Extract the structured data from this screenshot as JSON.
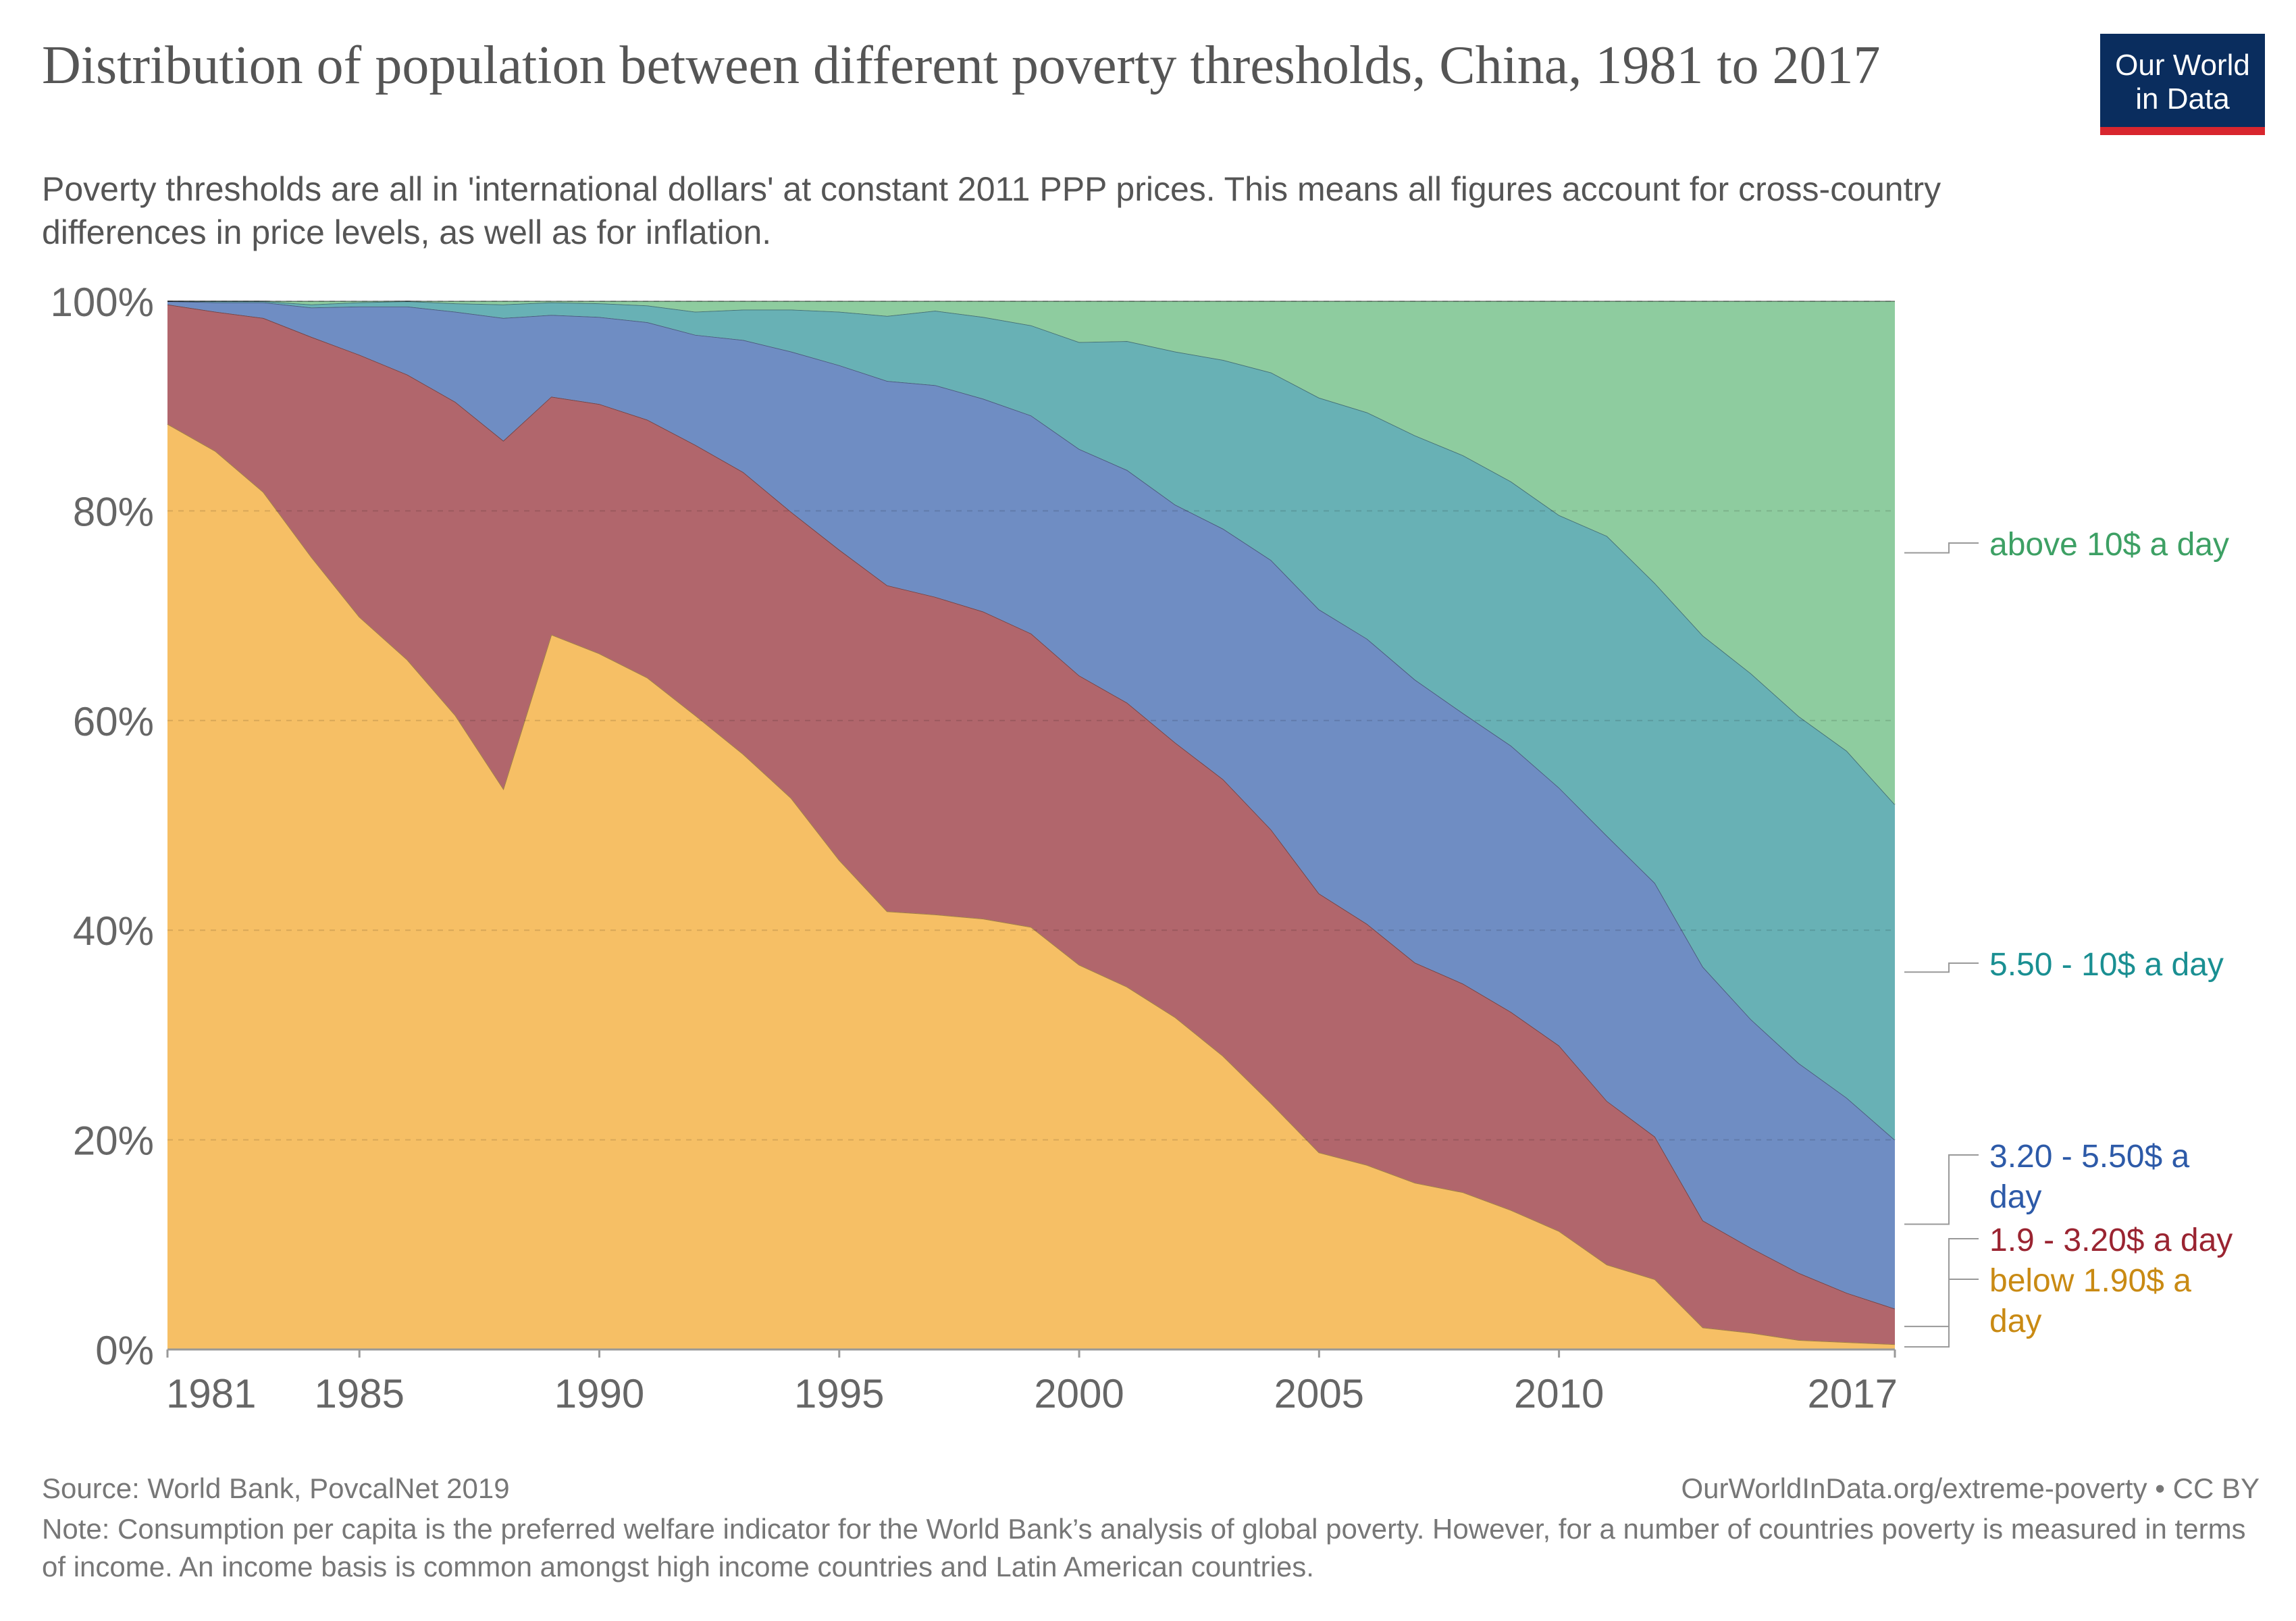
{
  "header": {
    "title": "Distribution of population between different poverty thresholds, China, 1981 to 2017",
    "subtitle": "Poverty thresholds are all in 'international dollars' at constant 2011 PPP prices. This means all figures account for cross-country differences in price levels, as well as for inflation.",
    "logo_line1": "Our World",
    "logo_line2": "in Data"
  },
  "footer": {
    "source": "Source: World Bank, PovcalNet 2019",
    "url": "OurWorldInData.org/extreme-poverty • CC BY",
    "note": "Note: Consumption per capita is the preferred welfare indicator for the World Bank’s analysis of global poverty. However, for a number of countries poverty is measured in terms of income. An income basis is common amongst high income countries and Latin American countries."
  },
  "chart_data": {
    "type": "area",
    "stacked": true,
    "percent": true,
    "x": [
      1981,
      1982,
      1983,
      1984,
      1985,
      1986,
      1987,
      1988,
      1989,
      1990,
      1991,
      1992,
      1993,
      1994,
      1995,
      1996,
      1997,
      1998,
      1999,
      2000,
      2001,
      2002,
      2003,
      2004,
      2005,
      2006,
      2007,
      2008,
      2009,
      2010,
      2011,
      2012,
      2013,
      2014,
      2015,
      2016,
      2017
    ],
    "xticks": [
      "1981",
      "1985",
      "1990",
      "1995",
      "2000",
      "2005",
      "2010",
      "2017"
    ],
    "yticks": [
      "0%",
      "20%",
      "40%",
      "60%",
      "80%",
      "100%"
    ],
    "ylim": [
      0,
      100
    ],
    "grid": true,
    "legend_placement": "right, inline labels",
    "series": [
      {
        "name": "below 1.90$ a day",
        "color": "#f6bf65",
        "label_color": "#c98a13",
        "values": [
          88.3,
          85.7,
          81.8,
          75.6,
          69.9,
          65.8,
          60.5,
          53.5,
          68.2,
          66.4,
          64.1,
          60.5,
          56.8,
          52.6,
          46.7,
          41.8,
          41.5,
          41.1,
          40.3,
          36.7,
          34.6,
          31.7,
          28.0,
          23.5,
          18.8,
          17.6,
          15.9,
          15.0,
          13.3,
          11.3,
          8.1,
          6.7,
          2.1,
          1.6,
          0.9,
          0.7,
          0.5
        ]
      },
      {
        "name": "1.9 - 3.20$ a day",
        "color": "#b1666c",
        "label_color": "#9a2431",
        "values": [
          11.4,
          13.3,
          16.6,
          21.0,
          25.0,
          27.2,
          29.9,
          33.2,
          22.7,
          23.8,
          24.6,
          25.8,
          26.9,
          27.3,
          29.6,
          31.1,
          30.3,
          29.3,
          28.0,
          27.6,
          27.1,
          26.2,
          26.4,
          26.1,
          24.7,
          23.0,
          21.0,
          19.9,
          18.9,
          17.7,
          15.6,
          13.6,
          10.2,
          8.1,
          6.4,
          4.7,
          3.4
        ]
      },
      {
        "name": "3.20 - 5.50$ a day",
        "color": "#6f8dc3",
        "label_color": "#2d5aa8",
        "values": [
          0.3,
          0.9,
          1.5,
          2.8,
          4.6,
          6.5,
          8.6,
          11.7,
          7.8,
          8.3,
          9.3,
          10.5,
          12.6,
          15.3,
          17.6,
          19.5,
          20.2,
          20.3,
          20.8,
          21.6,
          22.2,
          22.7,
          23.9,
          25.7,
          27.1,
          27.2,
          27.0,
          25.8,
          25.4,
          24.6,
          25.3,
          24.2,
          24.2,
          21.8,
          20.0,
          18.6,
          16.1
        ]
      },
      {
        "name": "5.50 - 10$ a day",
        "color": "#68b1b5",
        "label_color": "#1a8f92",
        "values": [
          0.0,
          0.1,
          0.1,
          0.3,
          0.4,
          0.5,
          0.8,
          1.3,
          1.2,
          1.3,
          1.6,
          2.2,
          2.9,
          4.0,
          5.1,
          6.2,
          7.1,
          7.8,
          8.6,
          10.2,
          12.3,
          14.6,
          16.1,
          17.9,
          20.2,
          21.6,
          23.3,
          24.6,
          25.2,
          26.0,
          28.6,
          28.6,
          31.6,
          33.0,
          33.1,
          33.1,
          32.0
        ]
      },
      {
        "name": "above 10$ a day",
        "color": "#8ecc9f",
        "label_color": "#3da064",
        "values": [
          0.0,
          0.0,
          0.0,
          0.3,
          0.1,
          0.0,
          0.2,
          0.3,
          0.1,
          0.2,
          0.4,
          1.0,
          0.8,
          0.8,
          1.0,
          1.4,
          0.9,
          1.5,
          2.3,
          3.9,
          3.8,
          4.8,
          5.6,
          6.8,
          9.2,
          10.6,
          12.8,
          14.7,
          17.2,
          20.4,
          22.4,
          26.9,
          31.9,
          35.5,
          39.6,
          42.9,
          48.0
        ]
      }
    ]
  }
}
